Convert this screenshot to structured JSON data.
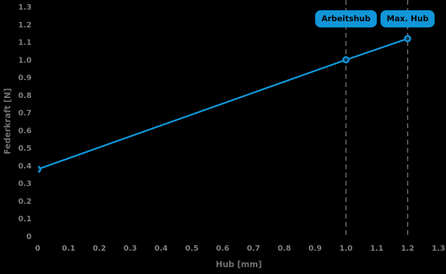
{
  "page": {
    "background": "#000000"
  },
  "colors": {
    "line": "#1196d8",
    "marker_fill": "#0d3b55",
    "marker_stroke": "#1196d8",
    "badge_bg": "#1196d8",
    "badge_text": "#000000",
    "axis_text": "#7f7f7f",
    "axis_title_text": "#6f6f6f",
    "dashed_line": "#5a5a5a"
  },
  "chart_data": {
    "type": "line",
    "title": "",
    "xlabel": "Hub [mm]",
    "ylabel": "Federkraft [N]",
    "xlim": [
      0,
      1.3
    ],
    "ylim": [
      0,
      1.3
    ],
    "xtick_labels": [
      "0",
      "0.1",
      "0.2",
      "0.3",
      "0.4",
      "0.5",
      "0.6",
      "0.7",
      "0.8",
      "0.9",
      "1.0",
      "1.1",
      "1.2",
      "1.3"
    ],
    "ytick_labels": [
      "0",
      "0.1",
      "0.2",
      "0.3",
      "0.4",
      "0.5",
      "0.6",
      "0.7",
      "0.8",
      "0.9",
      "1.0",
      "1.1",
      "1.2",
      "1.3"
    ],
    "grid": false,
    "legend": false,
    "series": [
      {
        "x": [
          0,
          1.0,
          1.2
        ],
        "y": [
          0.38,
          1.0,
          1.12
        ]
      }
    ],
    "annotations": [
      {
        "label": "Arbeitshub",
        "x": 1.0
      },
      {
        "label": "Max. Hub",
        "x": 1.2
      }
    ]
  }
}
